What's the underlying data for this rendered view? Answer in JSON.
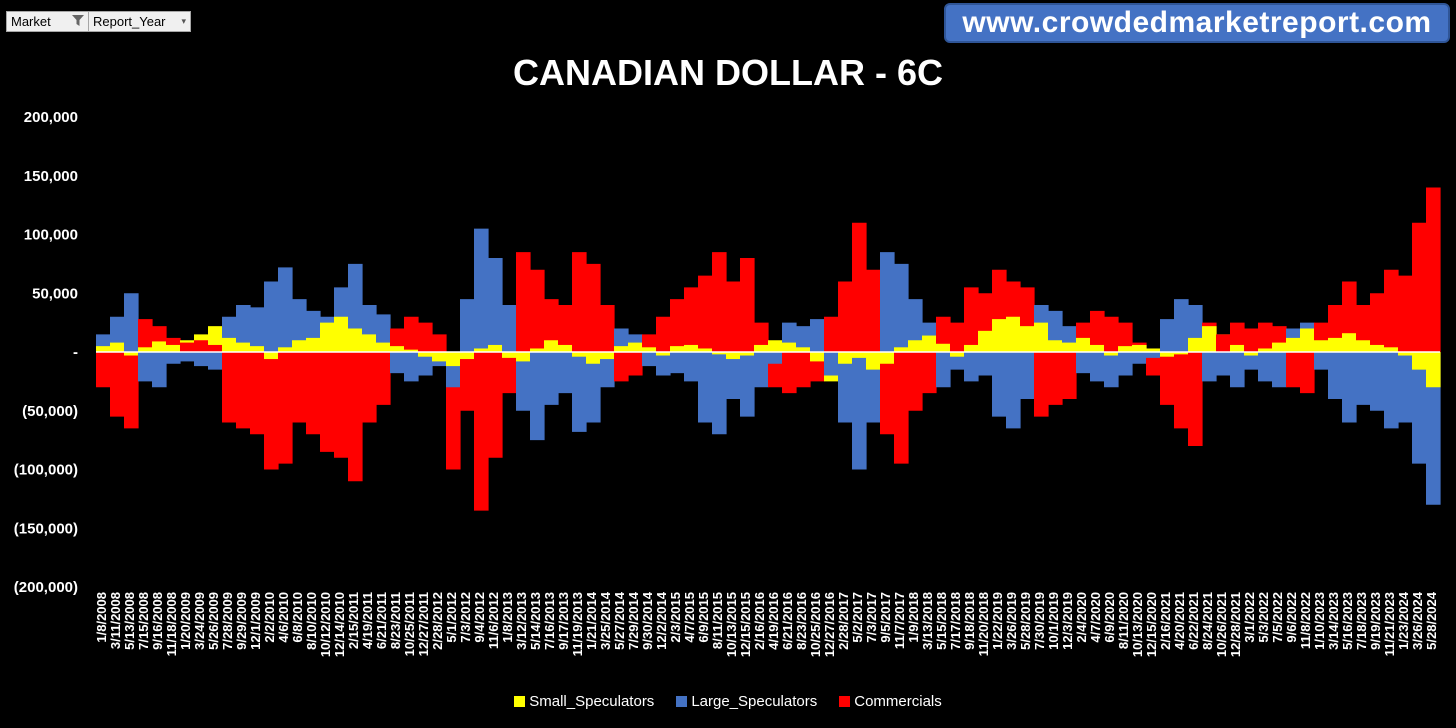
{
  "filters": {
    "market_label": "Market",
    "market_icon": "funnel-icon",
    "year_label": "Report_Year",
    "year_icon": "dropdown-arrow-icon"
  },
  "brand": {
    "text": "www.crowdedmarketreport.com"
  },
  "chart_data": {
    "type": "bar",
    "title": "CANADIAN DOLLAR - 6C",
    "xlabel": "",
    "ylabel": "",
    "ylim": [
      -200000,
      200000
    ],
    "y_ticks": [
      200000,
      150000,
      100000,
      50000,
      0,
      -50000,
      -100000,
      -150000,
      -200000
    ],
    "y_tick_labels": [
      "200,000",
      "150,000",
      "100,000",
      "50,000",
      "-",
      "(50,000)",
      "(100,000)",
      "(150,000)",
      "(200,000)"
    ],
    "x_tick_labels": [
      "1/8/2008",
      "3/11/2008",
      "5/13/2008",
      "7/15/2008",
      "9/16/2008",
      "11/18/2008",
      "1/20/2009",
      "3/24/2009",
      "5/26/2009",
      "7/28/2009",
      "9/29/2009",
      "12/1/2009",
      "2/2/2010",
      "4/6/2010",
      "6/8/2010",
      "8/10/2010",
      "10/12/2010",
      "12/14/2010",
      "2/15/2011",
      "4/19/2011",
      "6/21/2011",
      "8/23/2011",
      "10/25/2011",
      "12/27/2011",
      "2/28/2012",
      "5/1/2012",
      "7/3/2012",
      "9/4/2012",
      "11/6/2012",
      "1/8/2013",
      "3/12/2013",
      "5/14/2013",
      "7/16/2013",
      "9/17/2013",
      "11/19/2013",
      "1/21/2014",
      "3/25/2014",
      "5/27/2014",
      "7/29/2014",
      "9/30/2014",
      "12/2/2014",
      "2/3/2015",
      "4/7/2015",
      "6/9/2015",
      "8/11/2015",
      "10/13/2015",
      "12/15/2015",
      "2/16/2016",
      "4/19/2016",
      "6/21/2016",
      "8/23/2016",
      "10/25/2016",
      "12/27/2016",
      "2/28/2017",
      "5/2/2017",
      "7/3/2017",
      "9/5/2017",
      "11/7/2017",
      "1/9/2018",
      "3/13/2018",
      "5/15/2018",
      "7/17/2018",
      "9/18/2018",
      "11/20/2018",
      "1/22/2019",
      "3/26/2019",
      "5/28/2019",
      "7/30/2019",
      "10/1/2019",
      "12/3/2019",
      "2/4/2020",
      "4/7/2020",
      "6/9/2020",
      "8/11/2020",
      "10/13/2020",
      "12/15/2020",
      "2/16/2021",
      "4/20/2021",
      "6/22/2021",
      "8/24/2021",
      "10/26/2021",
      "12/28/2021",
      "3/1/2022",
      "5/3/2022",
      "7/5/2022",
      "9/6/2022",
      "11/8/2022",
      "1/10/2023",
      "3/14/2023",
      "5/16/2023",
      "7/18/2023",
      "9/19/2023",
      "11/21/2023",
      "1/23/2024",
      "3/26/2024",
      "5/28/2024"
    ],
    "series": [
      {
        "name": "Small_Speculators",
        "color": "#ffff00",
        "values": [
          5000,
          8000,
          -3000,
          4000,
          9000,
          6000,
          10000,
          15000,
          22000,
          12000,
          8000,
          5000,
          -6000,
          4000,
          10000,
          12000,
          25000,
          30000,
          20000,
          15000,
          8000,
          5000,
          2000,
          -4000,
          -8000,
          -12000,
          -6000,
          3000,
          6000,
          -5000,
          -8000,
          3000,
          10000,
          6000,
          -4000,
          -10000,
          -6000,
          5000,
          8000,
          4000,
          -3000,
          5000,
          6000,
          3000,
          -2000,
          -6000,
          -3000,
          6000,
          10000,
          8000,
          4000,
          -8000,
          -25000,
          -10000,
          -5000,
          -15000,
          -10000,
          4000,
          10000,
          14000,
          7000,
          -4000,
          6000,
          18000,
          28000,
          30000,
          22000,
          25000,
          10000,
          8000,
          12000,
          6000,
          -3000,
          5000,
          6000,
          3000,
          -4000,
          -2000,
          12000,
          22000,
          15000,
          6000,
          -3000,
          3000,
          8000,
          12000,
          20000,
          10000,
          12000,
          16000,
          10000,
          6000,
          4000,
          -3000,
          -15000,
          -30000
        ]
      },
      {
        "name": "Large_Speculators",
        "color": "#4472c4",
        "values": [
          15000,
          30000,
          50000,
          -25000,
          -30000,
          -10000,
          -8000,
          -12000,
          -15000,
          30000,
          40000,
          38000,
          60000,
          72000,
          45000,
          35000,
          30000,
          55000,
          75000,
          40000,
          32000,
          -18000,
          -25000,
          -20000,
          -12000,
          -30000,
          45000,
          105000,
          80000,
          40000,
          -50000,
          -75000,
          -45000,
          -35000,
          -68000,
          -60000,
          -30000,
          20000,
          15000,
          -12000,
          -20000,
          -18000,
          -25000,
          -60000,
          -70000,
          -40000,
          -55000,
          -30000,
          -10000,
          25000,
          22000,
          28000,
          -20000,
          -60000,
          -100000,
          -60000,
          85000,
          75000,
          45000,
          25000,
          -30000,
          -15000,
          -25000,
          -20000,
          -55000,
          -65000,
          -40000,
          40000,
          35000,
          22000,
          -18000,
          -25000,
          -30000,
          -20000,
          -10000,
          -5000,
          28000,
          45000,
          40000,
          -25000,
          -20000,
          -30000,
          -15000,
          -25000,
          -30000,
          20000,
          25000,
          -15000,
          -40000,
          -60000,
          -45000,
          -50000,
          -65000,
          -60000,
          -95000,
          -130000
        ]
      },
      {
        "name": "Commercials",
        "color": "#ff0000",
        "values": [
          -30000,
          -55000,
          -65000,
          28000,
          22000,
          12000,
          8000,
          10000,
          6000,
          -60000,
          -65000,
          -70000,
          -100000,
          -95000,
          -60000,
          -70000,
          -85000,
          -90000,
          -110000,
          -60000,
          -45000,
          20000,
          30000,
          25000,
          15000,
          -100000,
          -50000,
          -135000,
          -90000,
          -35000,
          85000,
          70000,
          45000,
          40000,
          85000,
          75000,
          40000,
          -25000,
          -20000,
          15000,
          30000,
          45000,
          55000,
          65000,
          85000,
          60000,
          80000,
          25000,
          -30000,
          -35000,
          -30000,
          -25000,
          30000,
          60000,
          110000,
          70000,
          -70000,
          -95000,
          -50000,
          -35000,
          30000,
          25000,
          55000,
          50000,
          70000,
          60000,
          55000,
          -55000,
          -45000,
          -40000,
          25000,
          35000,
          30000,
          25000,
          8000,
          -20000,
          -45000,
          -65000,
          -80000,
          25000,
          15000,
          25000,
          20000,
          25000,
          22000,
          -30000,
          -35000,
          25000,
          40000,
          60000,
          40000,
          50000,
          70000,
          65000,
          110000,
          140000
        ]
      }
    ],
    "legend_position": "bottom",
    "grid": false
  }
}
